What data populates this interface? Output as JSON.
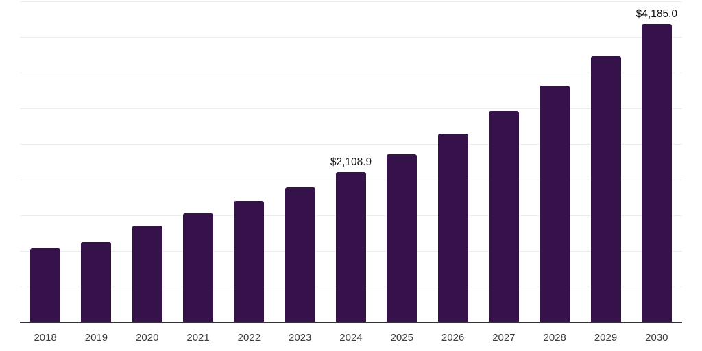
{
  "chart_data": {
    "type": "bar",
    "title": "",
    "xlabel": "",
    "ylabel": "",
    "categories": [
      "2018",
      "2019",
      "2020",
      "2021",
      "2022",
      "2023",
      "2024",
      "2025",
      "2026",
      "2027",
      "2028",
      "2029",
      "2030"
    ],
    "values": [
      1040,
      1128,
      1355,
      1530,
      1700,
      1892,
      2108.9,
      2360,
      2645,
      2965,
      3320,
      3732,
      4185
    ],
    "data_labels": {
      "2024": "$2,108.9",
      "2030": "$4,185.0"
    },
    "ylim": [
      0,
      4500
    ],
    "gridline_step": 500,
    "grid": true,
    "legend": "none",
    "y_axis_labels_visible": false,
    "colors": {
      "bar": "#36124b",
      "gridline": "#ececec",
      "axis_line": "#333338",
      "tick_label": "#3d3d3d",
      "data_label": "#111111",
      "background": "#ffffff"
    }
  }
}
